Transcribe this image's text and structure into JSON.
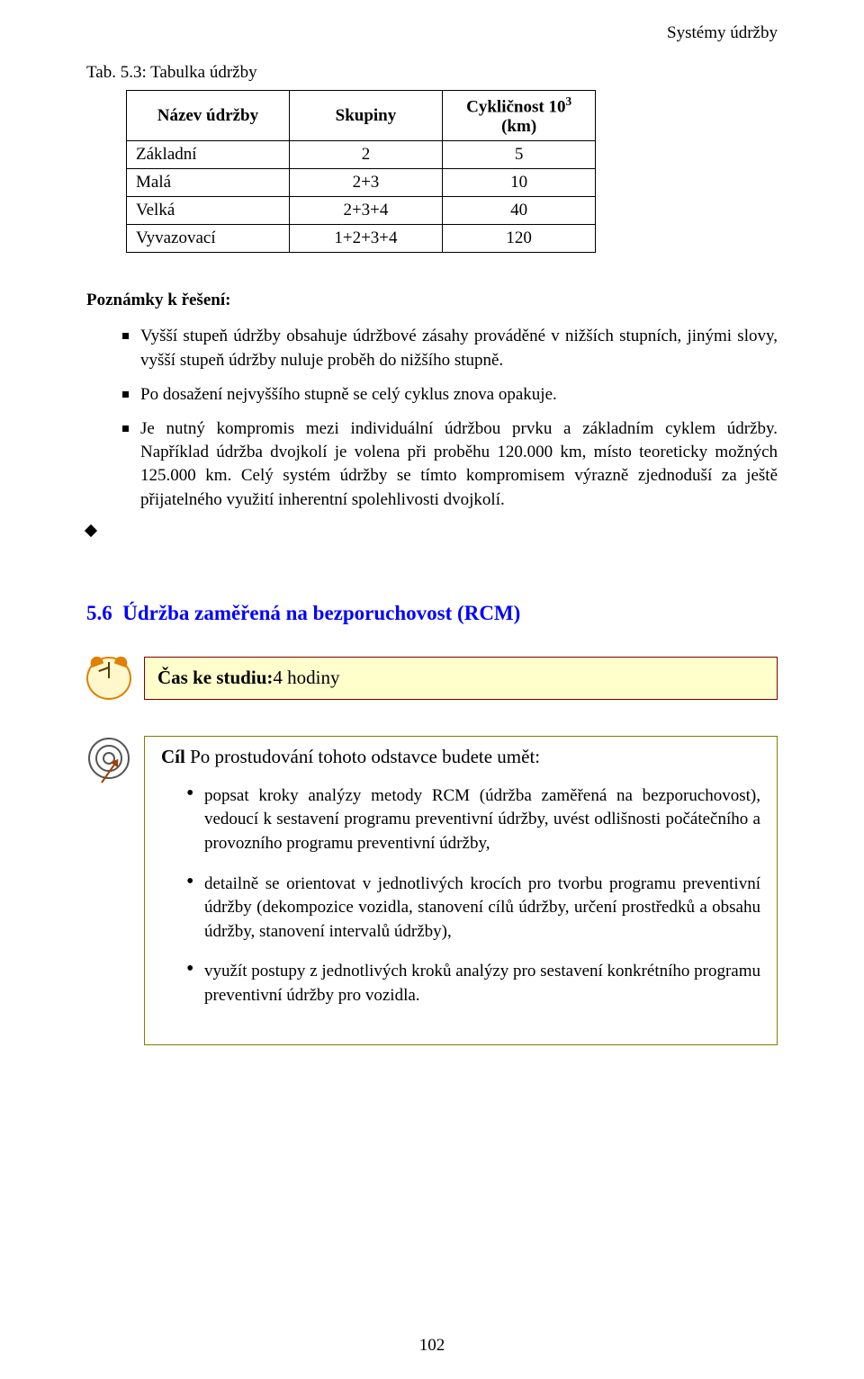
{
  "running_header": "Systémy údržby",
  "table_caption": "Tab. 5.3: Tabulka údržby",
  "table": {
    "columns": [
      "Název údržby",
      "Skupiny",
      "Cykličnost 10^3 (km)"
    ],
    "rows": [
      [
        "Základní",
        "2",
        "5"
      ],
      [
        "Malá",
        "2+3",
        "10"
      ],
      [
        "Velká",
        "2+3+4",
        "40"
      ],
      [
        "Vyvazovací",
        "1+2+3+4",
        "120"
      ]
    ],
    "border_color": "#000000",
    "header_weight": "bold",
    "cyclicity_superscript": "3",
    "cyclicity_label_before": "Cykličnost 10",
    "cyclicity_label_after": " (km)"
  },
  "notes_heading": "Poznámky k řešení:",
  "notes": [
    "Vyšší stupeň údržby obsahuje údržbové zásahy prováděné v nižších stupních, jinými slovy, vyšší stupeň údržby nuluje proběh do nižšího stupně.",
    "Po dosažení nejvyššího stupně se celý cyklus znova opakuje.",
    "Je nutný kompromis mezi individuální údržbou prvku a základním cyklem údržby. Například údržba dvojkolí je volena při proběhu 120.000 km, místo teoreticky možných 125.000 km. Celý systém údržby se tímto kompromisem výrazně zjednoduší za ještě přijatelného využití inherentní spolehlivosti dvojkolí."
  ],
  "section": {
    "number": "5.6",
    "title": "Údržba zaměřená na bezporuchovost (RCM)",
    "link_color": "#0000ff"
  },
  "study_time": {
    "lead": "Čas ke studiu:",
    "value": " 4 hodiny",
    "bg_color": "#ffffcc",
    "border_color": "#800000"
  },
  "goal": {
    "lead": "Cíl",
    "intro": "   Po prostudování tohoto odstavce budete umět:",
    "border_color": "#808000",
    "items": [
      "popsat kroky analýzy metody RCM (údržba zaměřená na bezporuchovost), vedoucí k sestavení programu preventivní údržby, uvést odlišnosti počátečního a provozního programu preventivní údržby,",
      "detailně se orientovat v jednotlivých krocích pro tvorbu programu preventivní údržby (dekompozice vozidla, stanovení cílů údržby, určení prostředků a obsahu údržby, stanovení intervalů údržby),",
      "využít postupy z jednotlivých kroků analýzy pro sestavení konkrétního programu preventivní údržby pro vozidla."
    ]
  },
  "page_number": "102"
}
